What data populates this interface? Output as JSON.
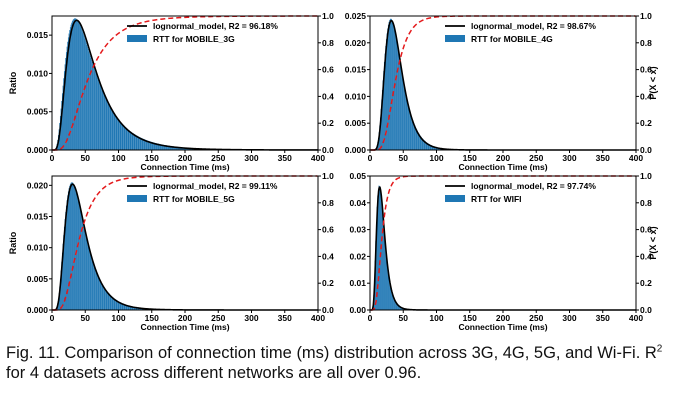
{
  "figure": {
    "caption_label": "Fig. 11.",
    "caption_pre": "Comparison of connection time (ms) distribution across 3G, 4G, 5G, and Wi-Fi. R",
    "caption_sup": "2",
    "caption_post": " for 4 datasets across different networks are all over 0.96.",
    "colors": {
      "histogram": "#1f77b4",
      "model_line": "#000000",
      "cdf_line": "#e41a1c"
    }
  },
  "chart_data": [
    {
      "type": "bar",
      "panel": "top-left",
      "xlabel": "Connection Time (ms)",
      "ylabel": "Ratio",
      "right_ylabel": "",
      "xlim": [
        0,
        400
      ],
      "ylim": [
        0,
        0.0175
      ],
      "yticks": [
        0.0,
        0.005,
        0.01,
        0.015
      ],
      "yticklabels": [
        "0.000",
        "0.005",
        "0.010",
        "0.015"
      ],
      "xticks": [
        0,
        50,
        100,
        150,
        200,
        250,
        300,
        350,
        400
      ],
      "right_yticks": [
        "0.0",
        "0.2",
        "0.4",
        "0.6",
        "0.8",
        "1.0"
      ],
      "legend_position": "top-right",
      "series": [
        {
          "name": "lognormal_model, R2 = 96.18%",
          "kind": "line",
          "mu": 3.95,
          "sigma": 0.58
        },
        {
          "name": "RTT for MOBILE_3G",
          "kind": "histogram",
          "mu": 3.93,
          "sigma": 0.62
        },
        {
          "name": "",
          "kind": "cdf",
          "mu": 3.95,
          "sigma": 0.58
        }
      ],
      "peak": {
        "x": 44,
        "y": 0.0172
      }
    },
    {
      "type": "bar",
      "panel": "top-right",
      "xlabel": "Connection Time (ms)",
      "ylabel": "",
      "right_ylabel": "P(X < x)",
      "xlim": [
        0,
        400
      ],
      "ylim": [
        0,
        0.025
      ],
      "yticks": [
        0.0,
        0.005,
        0.01,
        0.015,
        0.02,
        0.025
      ],
      "yticklabels": [
        "0.000",
        "0.005",
        "0.010",
        "0.015",
        "0.020",
        "0.025"
      ],
      "xticks": [
        0,
        50,
        100,
        150,
        200,
        250,
        300,
        350,
        400
      ],
      "right_yticks": [
        "0.0",
        "0.2",
        "0.4",
        "0.6",
        "0.8",
        "1.0"
      ],
      "legend_position": "top-right",
      "series": [
        {
          "name": "lognormal_model, R2 = 98.67%",
          "kind": "line",
          "mu": 3.63,
          "sigma": 0.4
        },
        {
          "name": "RTT for MOBILE_4G",
          "kind": "histogram",
          "mu": 3.62,
          "sigma": 0.42
        },
        {
          "name": "",
          "kind": "cdf",
          "mu": 3.63,
          "sigma": 0.4
        }
      ],
      "peak": {
        "x": 32,
        "y": 0.0245
      }
    },
    {
      "type": "bar",
      "panel": "bottom-left",
      "xlabel": "Connection Time (ms)",
      "ylabel": "Ratio",
      "right_ylabel": "",
      "xlim": [
        0,
        400
      ],
      "ylim": [
        0,
        0.0215
      ],
      "yticks": [
        0.0,
        0.005,
        0.01,
        0.015,
        0.02
      ],
      "yticklabels": [
        "0.000",
        "0.005",
        "0.010",
        "0.015",
        "0.020"
      ],
      "xticks": [
        0,
        50,
        100,
        150,
        200,
        250,
        300,
        350,
        400
      ],
      "right_yticks": [
        "0.0",
        "0.2",
        "0.4",
        "0.6",
        "0.8",
        "1.0"
      ],
      "legend_position": "top-right",
      "series": [
        {
          "name": "lognormal_model, R2 = 99.11%",
          "kind": "line",
          "mu": 3.68,
          "sigma": 0.5
        },
        {
          "name": "RTT for MOBILE_5G",
          "kind": "histogram",
          "mu": 3.67,
          "sigma": 0.52
        },
        {
          "name": "",
          "kind": "cdf",
          "mu": 3.68,
          "sigma": 0.5
        }
      ],
      "peak": {
        "x": 32,
        "y": 0.0205
      }
    },
    {
      "type": "bar",
      "panel": "bottom-right",
      "xlabel": "Connection Time (ms)",
      "ylabel": "",
      "right_ylabel": "P(X < x)",
      "xlim": [
        0,
        400
      ],
      "ylim": [
        0,
        0.05
      ],
      "yticks": [
        0.0,
        0.01,
        0.02,
        0.03,
        0.04,
        0.05
      ],
      "yticklabels": [
        "0.00",
        "0.01",
        "0.02",
        "0.03",
        "0.04",
        "0.05"
      ],
      "xticks": [
        0,
        50,
        100,
        150,
        200,
        250,
        300,
        350,
        400
      ],
      "right_yticks": [
        "0.0",
        "0.2",
        "0.4",
        "0.6",
        "0.8",
        "1.0"
      ],
      "legend_position": "top-right",
      "series": [
        {
          "name": "lognormal_model, R2 = 97.74%",
          "kind": "line",
          "mu": 2.85,
          "sigma": 0.42
        },
        {
          "name": "RTT for WIFI",
          "kind": "histogram",
          "mu": 2.83,
          "sigma": 0.45
        },
        {
          "name": "",
          "kind": "cdf",
          "mu": 2.85,
          "sigma": 0.42
        }
      ],
      "peak": {
        "x": 15,
        "y": 0.0465
      }
    }
  ]
}
